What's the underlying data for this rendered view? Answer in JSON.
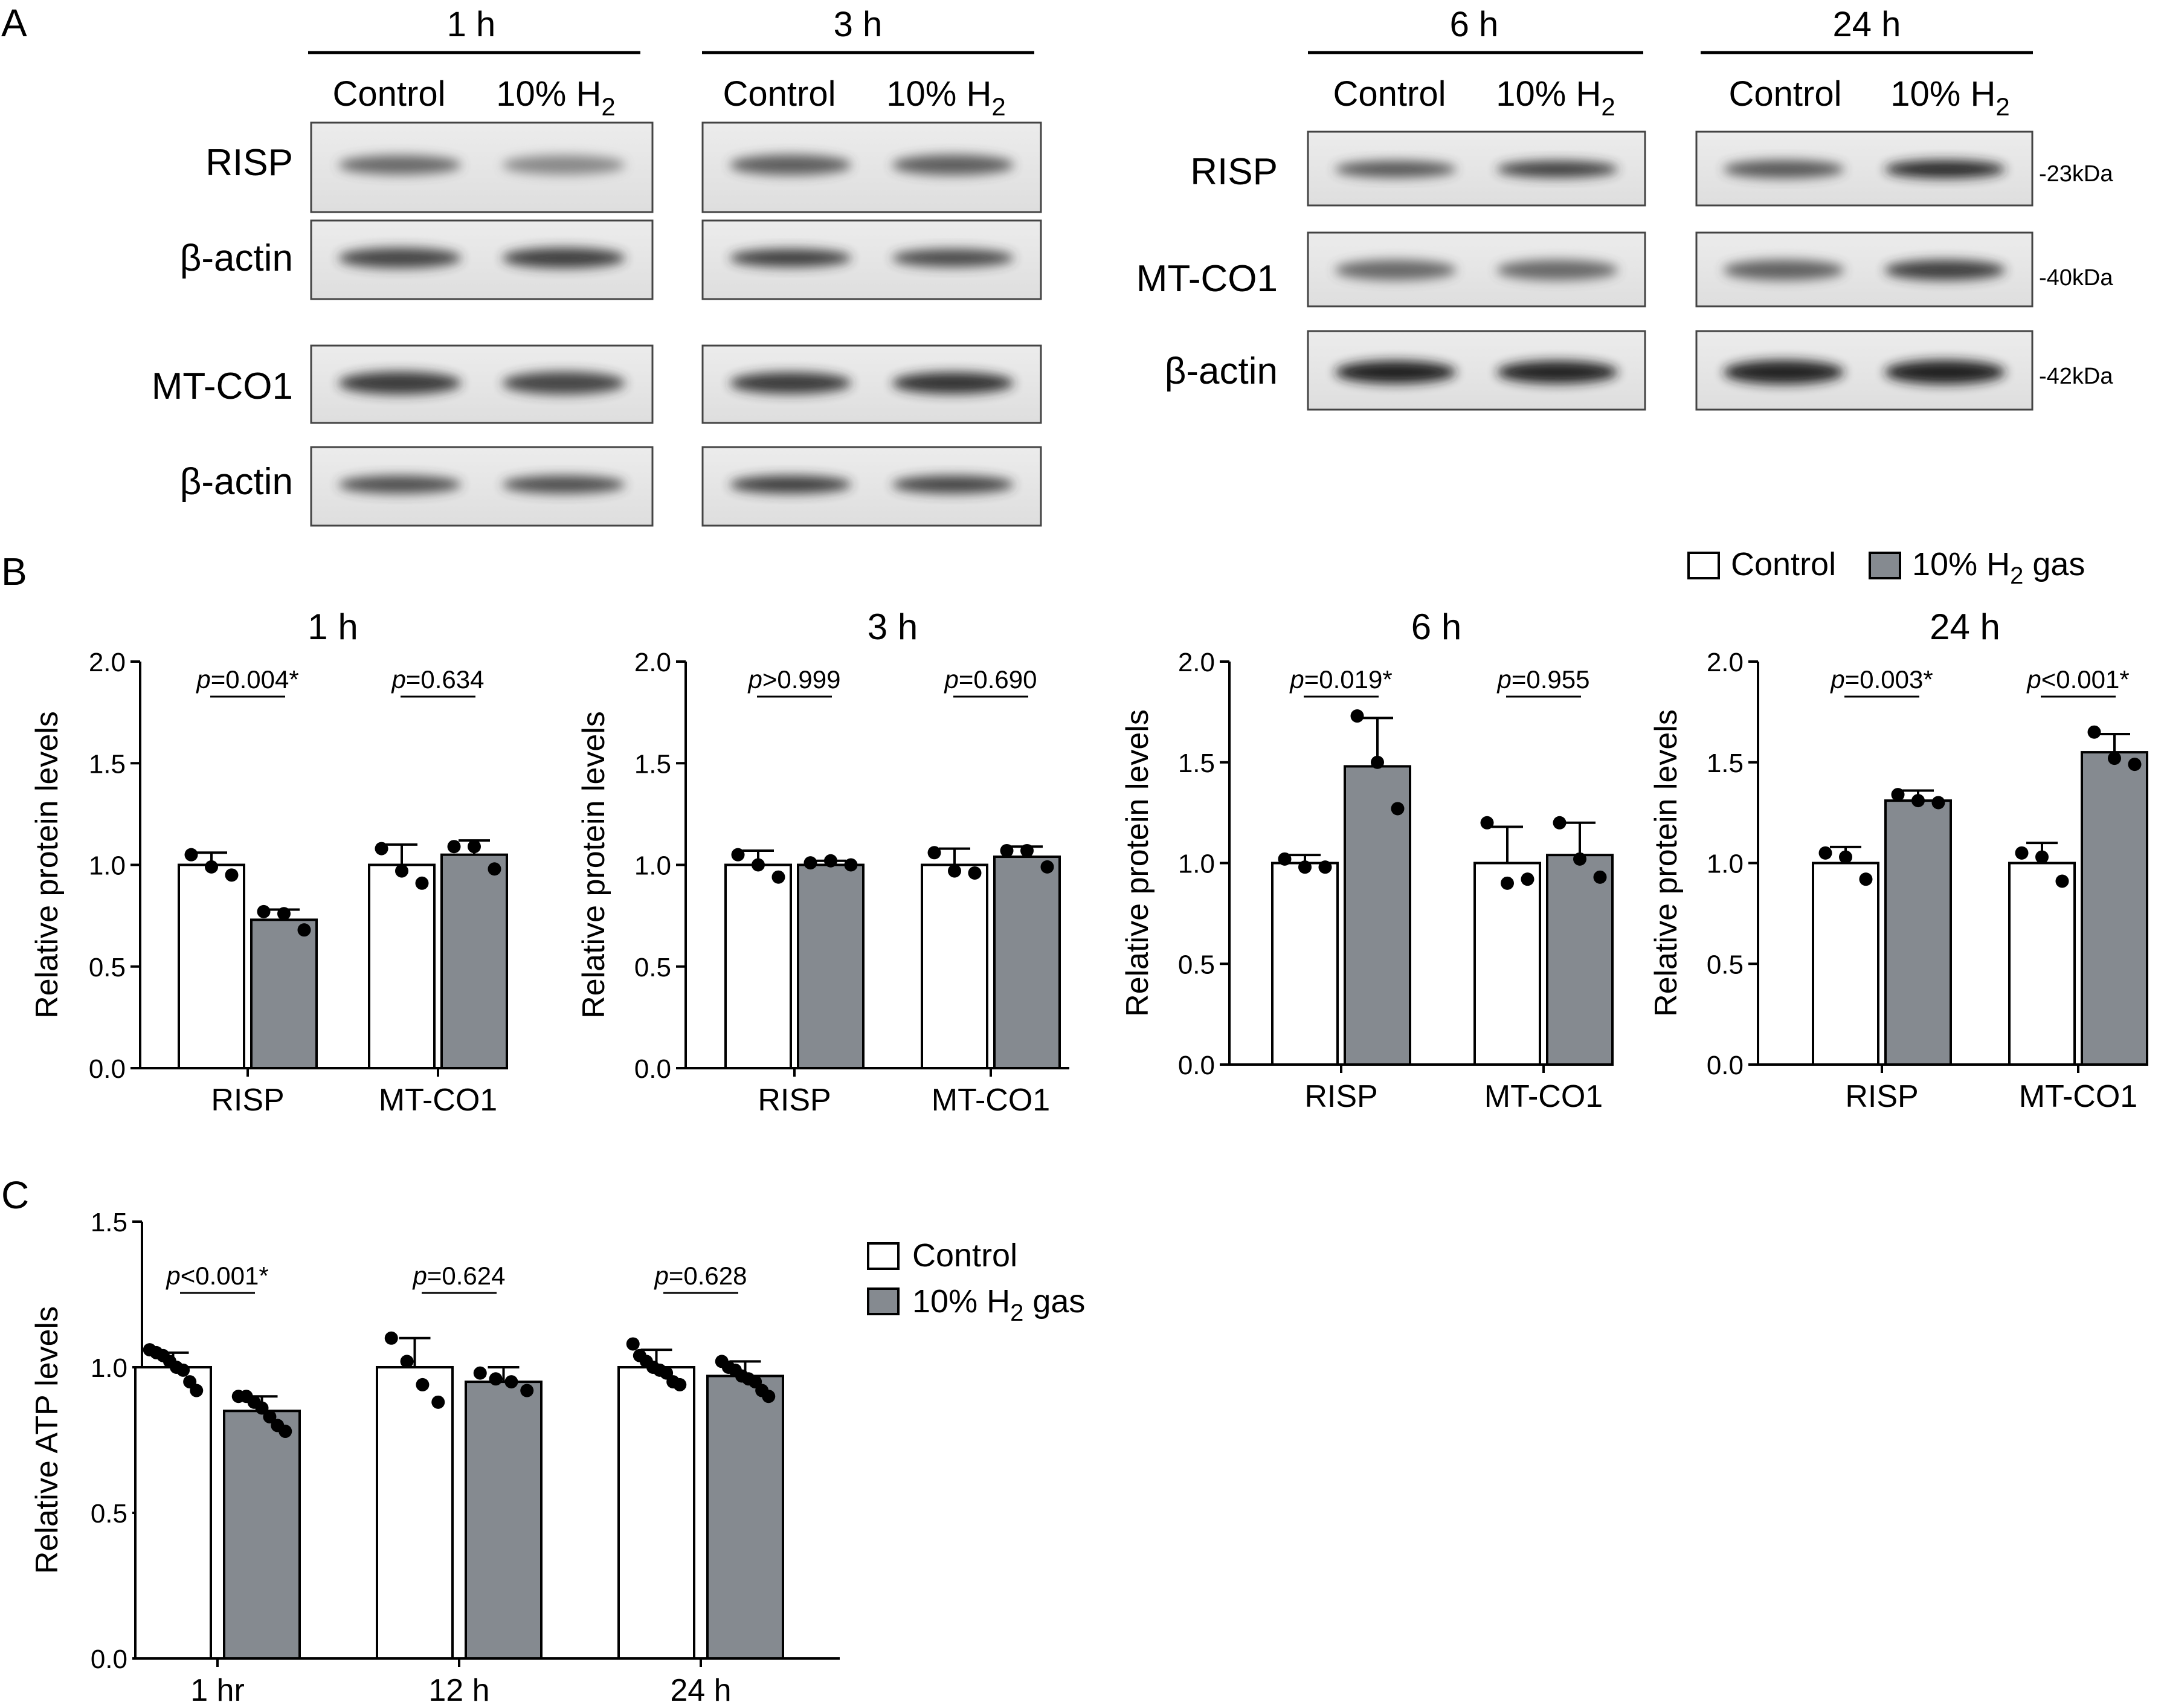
{
  "panel_a": {
    "letter": "A",
    "blocks": [
      {
        "time": "1 h",
        "lanes": [
          "Control",
          "10% H",
          "2"
        ],
        "rows": [
          "RISP",
          "β-actin",
          "MT-CO1",
          "β-actin"
        ]
      },
      {
        "time": "3 h",
        "lanes": [
          "Control",
          "10% H",
          "2"
        ]
      },
      {
        "time": "6 h",
        "lanes": [
          "Control",
          "10% H",
          "2"
        ],
        "rows": [
          "RISP",
          "MT-CO1",
          "β-actin"
        ]
      },
      {
        "time": "24 h",
        "lanes": [
          "Control",
          "10% H",
          "2"
        ],
        "markers": [
          "-23kDa",
          "-40kDa",
          "-42kDa"
        ]
      }
    ]
  },
  "legend_b": {
    "control": "Control",
    "h2_pre": "10% H",
    "h2_sub": "2",
    "h2_post": " gas"
  },
  "panel_b_letter": "B",
  "panel_c_letter": "C",
  "legend_c": {
    "control": "Control",
    "h2_pre": "10% H",
    "h2_sub": "2",
    "h2_post": " gas"
  },
  "colors": {
    "control_fill": "#ffffff",
    "h2_fill": "#858a90",
    "stroke": "#000000"
  },
  "chart_data": [
    {
      "type": "bar",
      "title": "1 h",
      "ylabel": "Relative protein levels",
      "ylim": [
        0,
        2.0
      ],
      "yticks": [
        "0.0",
        "0.5",
        "1.0",
        "1.5",
        "2.0"
      ],
      "categories": [
        "RISP",
        "MT-CO1"
      ],
      "series": [
        {
          "name": "Control",
          "values": [
            1.0,
            1.0
          ],
          "err": [
            0.06,
            0.1
          ],
          "points": [
            [
              1.05,
              0.99,
              0.95
            ],
            [
              1.08,
              0.97,
              0.91
            ]
          ]
        },
        {
          "name": "10% H2 gas",
          "values": [
            0.73,
            1.05
          ],
          "err": [
            0.05,
            0.07
          ],
          "points": [
            [
              0.77,
              0.76,
              0.68
            ],
            [
              1.09,
              1.09,
              0.98
            ]
          ]
        }
      ],
      "pvalues": [
        "p=0.004*",
        "p=0.634"
      ]
    },
    {
      "type": "bar",
      "title": "3 h",
      "ylabel": "Relative protein levels",
      "ylim": [
        0,
        2.0
      ],
      "yticks": [
        "0.0",
        "0.5",
        "1.0",
        "1.5",
        "2.0"
      ],
      "categories": [
        "RISP",
        "MT-CO1"
      ],
      "series": [
        {
          "name": "Control",
          "values": [
            1.0,
            1.0
          ],
          "err": [
            0.07,
            0.08
          ],
          "points": [
            [
              1.05,
              1.0,
              0.94
            ],
            [
              1.06,
              0.97,
              0.96
            ]
          ]
        },
        {
          "name": "10% H2 gas",
          "values": [
            1.0,
            1.04
          ],
          "err": [
            0.02,
            0.05
          ],
          "points": [
            [
              1.01,
              1.02,
              1.0
            ],
            [
              1.07,
              1.07,
              0.99
            ]
          ]
        }
      ],
      "pvalues": [
        "p>0.999",
        "p=0.690"
      ]
    },
    {
      "type": "bar",
      "title": "6 h",
      "ylabel": "Relative protein levels",
      "ylim": [
        0,
        2.0
      ],
      "yticks": [
        "0.0",
        "0.5",
        "1.0",
        "1.5",
        "2.0"
      ],
      "categories": [
        "RISP",
        "MT-CO1"
      ],
      "series": [
        {
          "name": "Control",
          "values": [
            1.0,
            1.0
          ],
          "err": [
            0.04,
            0.18
          ],
          "points": [
            [
              1.02,
              0.98,
              0.98
            ],
            [
              1.2,
              0.9,
              0.92
            ]
          ]
        },
        {
          "name": "10% H2 gas",
          "values": [
            1.48,
            1.04
          ],
          "err": [
            0.24,
            0.16
          ],
          "points": [
            [
              1.73,
              1.5,
              1.27
            ],
            [
              1.2,
              1.02,
              0.93
            ]
          ]
        }
      ],
      "pvalues": [
        "p=0.019*",
        "p=0.955"
      ]
    },
    {
      "type": "bar",
      "title": "24 h",
      "ylabel": "Relative protein levels",
      "ylim": [
        0,
        2.0
      ],
      "yticks": [
        "0.0",
        "0.5",
        "1.0",
        "1.5",
        "2.0"
      ],
      "categories": [
        "RISP",
        "MT-CO1"
      ],
      "series": [
        {
          "name": "Control",
          "values": [
            1.0,
            1.0
          ],
          "err": [
            0.08,
            0.1
          ],
          "points": [
            [
              1.05,
              1.03,
              0.92
            ],
            [
              1.05,
              1.03,
              0.91
            ]
          ]
        },
        {
          "name": "10% H2 gas",
          "values": [
            1.31,
            1.55
          ],
          "err": [
            0.05,
            0.09
          ],
          "points": [
            [
              1.34,
              1.31,
              1.3
            ],
            [
              1.65,
              1.52,
              1.49
            ]
          ]
        }
      ],
      "pvalues": [
        "p=0.003*",
        "p<0.001*"
      ]
    },
    {
      "type": "bar",
      "title": "",
      "ylabel": "Relative ATP levels",
      "ylim": [
        0,
        1.5
      ],
      "yticks": [
        "0.0",
        "0.5",
        "1.0",
        "1.5"
      ],
      "categories": [
        "1 hr",
        "12 h",
        "24 h"
      ],
      "series": [
        {
          "name": "Control",
          "values": [
            1.0,
            1.0,
            1.0
          ],
          "err": [
            0.05,
            0.1,
            0.06
          ],
          "points": [
            [
              1.06,
              1.05,
              1.04,
              1.02,
              1.0,
              0.99,
              0.95,
              0.92
            ],
            [
              1.1,
              1.02,
              0.94,
              0.88
            ],
            [
              1.08,
              1.04,
              1.02,
              1.0,
              0.99,
              0.98,
              0.95,
              0.94
            ]
          ]
        },
        {
          "name": "10% H2 gas",
          "values": [
            0.85,
            0.95,
            0.97
          ],
          "err": [
            0.05,
            0.05,
            0.05
          ],
          "points": [
            [
              0.9,
              0.9,
              0.88,
              0.86,
              0.83,
              0.8,
              0.78
            ],
            [
              0.98,
              0.96,
              0.95,
              0.92
            ],
            [
              1.02,
              1.0,
              0.99,
              0.97,
              0.96,
              0.95,
              0.92,
              0.9
            ]
          ]
        }
      ],
      "pvalues": [
        "p<0.001*",
        "p=0.624",
        "p=0.628"
      ]
    }
  ]
}
